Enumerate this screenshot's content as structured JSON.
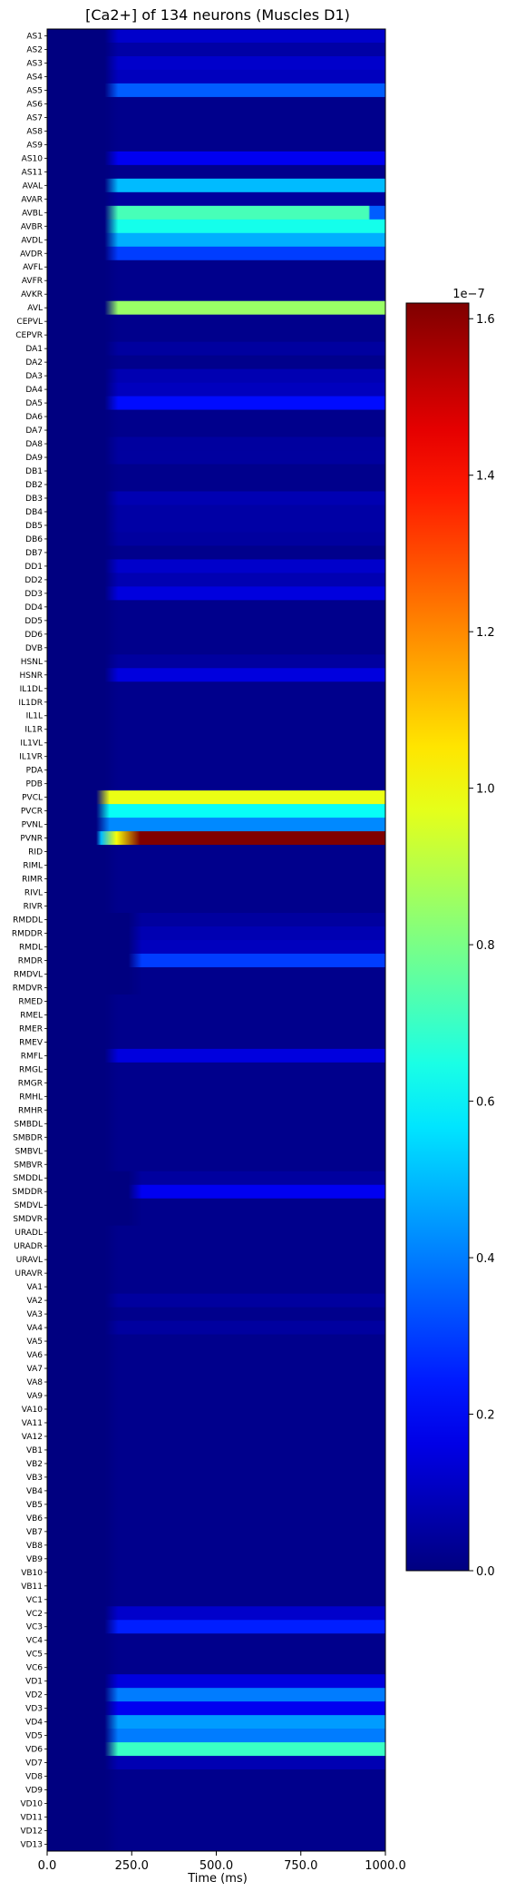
{
  "chart_data": {
    "type": "heatmap",
    "title": "[Ca2+] of 134 neurons (Muscles D1)",
    "xlabel": "Time (ms)",
    "ylabel": "",
    "xlim": [
      0,
      1000
    ],
    "x_ticks": [
      "0.0",
      "250.0",
      "500.0",
      "750.0",
      "1000.0"
    ],
    "x_tick_values": [
      0,
      250,
      500,
      750,
      1000
    ],
    "colormap": "jet",
    "colorbar": {
      "min": 0,
      "max": 1.62,
      "offset_label": "1e−7",
      "ticks": [
        "0.0",
        "0.2",
        "0.4",
        "0.6",
        "0.8",
        "1.0",
        "1.2",
        "1.4",
        "1.6"
      ],
      "tick_values": [
        0,
        0.2,
        0.4,
        0.6,
        0.8,
        1.0,
        1.2,
        1.4,
        1.6
      ]
    },
    "neurons": [
      "AS1",
      "AS2",
      "AS3",
      "AS4",
      "AS5",
      "AS6",
      "AS7",
      "AS8",
      "AS9",
      "AS10",
      "AS11",
      "AVAL",
      "AVAR",
      "AVBL",
      "AVBR",
      "AVDL",
      "AVDR",
      "AVFL",
      "AVFR",
      "AVKR",
      "AVL",
      "CEPVL",
      "CEPVR",
      "DA1",
      "DA2",
      "DA3",
      "DA4",
      "DA5",
      "DA6",
      "DA7",
      "DA8",
      "DA9",
      "DB1",
      "DB2",
      "DB3",
      "DB4",
      "DB5",
      "DB6",
      "DB7",
      "DD1",
      "DD2",
      "DD3",
      "DD4",
      "DD5",
      "DD6",
      "DVB",
      "HSNL",
      "HSNR",
      "IL1DL",
      "IL1DR",
      "IL1L",
      "IL1R",
      "IL1VL",
      "IL1VR",
      "PDA",
      "PDB",
      "PVCL",
      "PVCR",
      "PVNL",
      "PVNR",
      "RID",
      "RIML",
      "RIMR",
      "RIVL",
      "RIVR",
      "RMDDL",
      "RMDDR",
      "RMDL",
      "RMDR",
      "RMDVL",
      "RMDVR",
      "RMED",
      "RMEL",
      "RMER",
      "RMEV",
      "RMFL",
      "RMGL",
      "RMGR",
      "RMHL",
      "RMHR",
      "SMBDL",
      "SMBDR",
      "SMBVL",
      "SMBVR",
      "SMDDL",
      "SMDDR",
      "SMDVL",
      "SMDVR",
      "URADL",
      "URADR",
      "URAVL",
      "URAVR",
      "VA1",
      "VA2",
      "VA3",
      "VA4",
      "VA5",
      "VA6",
      "VA7",
      "VA8",
      "VA9",
      "VA10",
      "VA11",
      "VA12",
      "VB1",
      "VB2",
      "VB3",
      "VB4",
      "VB5",
      "VB6",
      "VB7",
      "VB8",
      "VB9",
      "VB10",
      "VB11",
      "VC1",
      "VC2",
      "VC3",
      "VC4",
      "VC5",
      "VC6",
      "VD1",
      "VD2",
      "VD3",
      "VD4",
      "VD5",
      "VD6",
      "VD7",
      "VD8",
      "VD9",
      "VD10",
      "VD11",
      "VD12",
      "VD13"
    ],
    "steady_values": {
      "AS1": 0.12,
      "AS2": 0.06,
      "AS3": 0.12,
      "AS4": 0.1,
      "AS5": 0.35,
      "AS10": 0.18,
      "AVAL": 0.5,
      "AVAR": 0.05,
      "AVBL": 0.72,
      "AVBR": 0.64,
      "AVDL": 0.48,
      "AVDR": 0.3,
      "AVL": 0.85,
      "DA1": 0.05,
      "DA3": 0.08,
      "DA4": 0.1,
      "DA5": 0.22,
      "DA8": 0.05,
      "DA9": 0.05,
      "DB3": 0.08,
      "DB4": 0.06,
      "DB5": 0.06,
      "DB6": 0.05,
      "DD1": 0.12,
      "DD2": 0.08,
      "DD3": 0.15,
      "HSNL": 0.05,
      "HSNR": 0.15,
      "PVCL": 0.98,
      "PVCR": 0.62,
      "PVNL": 0.42,
      "PVNR": 1.62,
      "RMDDL": 0.05,
      "RMDDR": 0.08,
      "RMDL": 0.1,
      "RMDR": 0.3,
      "RMFL": 0.15,
      "SMDDL": 0.05,
      "SMDDR": 0.18,
      "VA2": 0.05,
      "VA4": 0.05,
      "VC2": 0.12,
      "VC3": 0.25,
      "VD1": 0.15,
      "VD2": 0.4,
      "VD3": 0.18,
      "VD4": 0.45,
      "VD5": 0.4,
      "VD6": 0.7,
      "VD7": 0.08
    },
    "transients": {
      "AVBL": {
        "end_ms": 950,
        "value_after": 0.35
      },
      "PVNR": {
        "onset_peak": 1.0
      }
    }
  }
}
